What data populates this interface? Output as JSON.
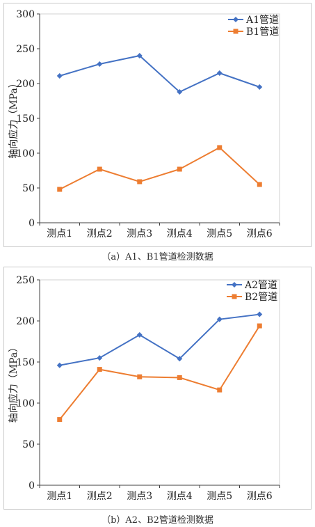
{
  "chart_data": [
    {
      "type": "line",
      "categories": [
        "测点1",
        "测点2",
        "测点3",
        "测点4",
        "测点5",
        "测点6"
      ],
      "series": [
        {
          "name": "A1管道",
          "values": [
            211,
            228,
            240,
            188,
            215,
            195
          ],
          "color": "#4472C4",
          "marker": "diamond"
        },
        {
          "name": "B1管道",
          "values": [
            48,
            77,
            59,
            77,
            108,
            55
          ],
          "color": "#ED7D31",
          "marker": "square"
        }
      ],
      "ylabel": "轴向应力（MPa）",
      "ylim": [
        0,
        300
      ],
      "yticks": [
        0,
        50,
        100,
        150,
        200,
        250,
        300
      ],
      "grid": false,
      "legend": "top-right",
      "caption": "（a）A1、B1管道检测数据"
    },
    {
      "type": "line",
      "categories": [
        "测点1",
        "测点2",
        "测点3",
        "测点4",
        "测点5",
        "测点6"
      ],
      "series": [
        {
          "name": "A2管道",
          "values": [
            146,
            155,
            183,
            154,
            202,
            208
          ],
          "color": "#4472C4",
          "marker": "diamond"
        },
        {
          "name": "B2管道",
          "values": [
            80,
            141,
            132,
            131,
            116,
            194
          ],
          "color": "#ED7D31",
          "marker": "square"
        }
      ],
      "ylabel": "轴向应力（MPa）",
      "ylim": [
        0,
        250
      ],
      "yticks": [
        0,
        50,
        100,
        150,
        200,
        250
      ],
      "grid": false,
      "legend": "top-right",
      "caption": "（b）A2、B2管道检测数据"
    }
  ]
}
